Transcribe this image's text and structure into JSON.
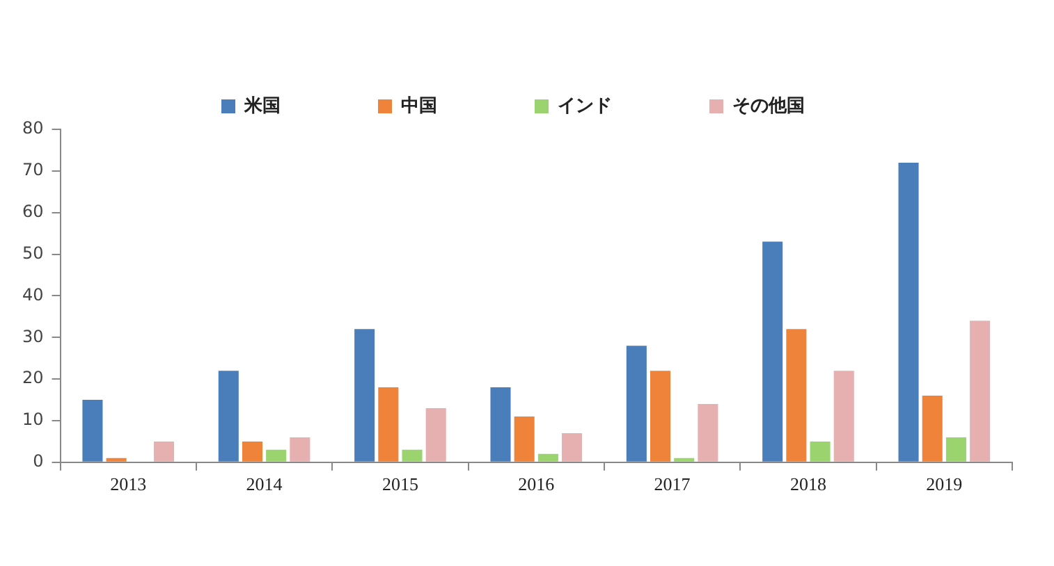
{
  "chart_data": {
    "type": "bar",
    "categories": [
      "2013",
      "2014",
      "2015",
      "2016",
      "2017",
      "2018",
      "2019"
    ],
    "series": [
      {
        "name": "米国",
        "color": "#4a7ebb",
        "values": [
          15,
          22,
          32,
          18,
          28,
          53,
          72
        ]
      },
      {
        "name": "中国",
        "color": "#f0833a",
        "values": [
          1,
          5,
          18,
          11,
          22,
          32,
          16
        ]
      },
      {
        "name": "インド",
        "color": "#9bd36f",
        "values": [
          0,
          3,
          3,
          2,
          1,
          5,
          6
        ]
      },
      {
        "name": "その他国",
        "color": "#e6b0b0",
        "values": [
          5,
          6,
          13,
          7,
          14,
          22,
          34
        ]
      }
    ],
    "ylim": [
      0,
      80
    ],
    "yticks": [
      0,
      10,
      20,
      30,
      40,
      50,
      60,
      70,
      80
    ],
    "grid": false,
    "legend": "top"
  }
}
